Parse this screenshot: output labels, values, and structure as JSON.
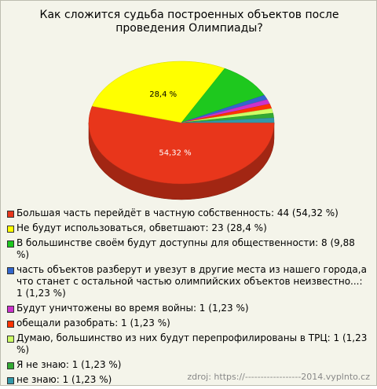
{
  "chart_data": {
    "type": "pie",
    "title": "Как сложится судьба построенных объектов после проведения Олимпиады?",
    "categories": [
      "Большая часть перейдёт в частную собственность: 44 (54,32 %)",
      "Не будут использоваться, обветшают: 23 (28,4 %)",
      "В большинстве своём будут доступны для общественности: 8 (9,88 %)",
      "часть объектов разберут и увезут в другие места из нашего города,а что станет с остальной частью олимпийских объектов неизвестно...: 1 (1,23 %)",
      "Будут уничтожены во время войны: 1 (1,23 %)",
      "обещали разобрать: 1 (1,23 %)",
      "Думаю, большинство из них будут перепрофилированы в ТРЦ: 1 (1,23 %)",
      "Я не знаю: 1 (1,23 %)",
      "не знаю: 1 (1,23 %)"
    ],
    "values": [
      54.32,
      28.4,
      9.88,
      1.23,
      1.23,
      1.23,
      1.23,
      1.23,
      1.23
    ],
    "value_labels": [
      "54,32 %",
      "28,4 %",
      null,
      null,
      null,
      null,
      null,
      null,
      null
    ],
    "colors": [
      "#e8361b",
      "#ffff00",
      "#1ec81e",
      "#3366cc",
      "#cc33cc",
      "#ff3300",
      "#ccff66",
      "#33aa33",
      "#3399aa"
    ],
    "source": "zdroj: https://------------------2014.vyplnto.cz"
  }
}
